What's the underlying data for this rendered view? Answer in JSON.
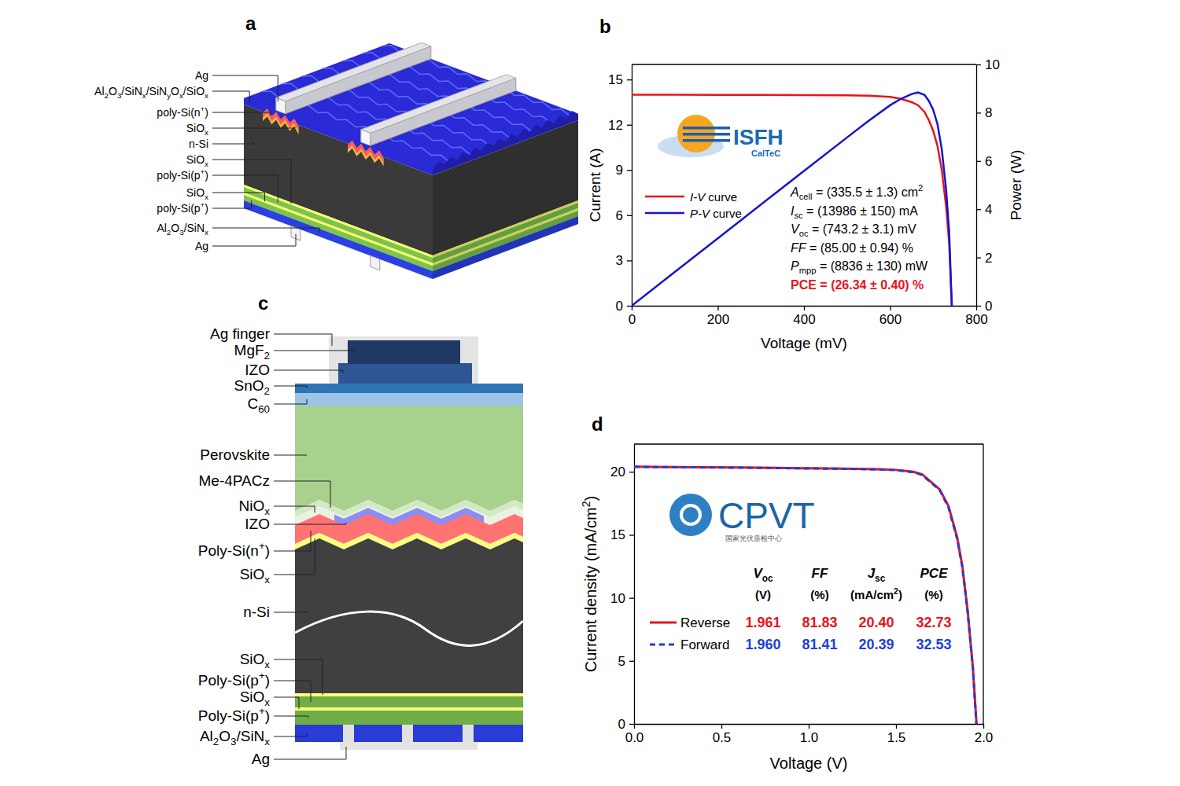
{
  "panel_labels": [
    "a",
    "b",
    "c",
    "d"
  ],
  "diagrams": [
    {
      "labels": [
        [
          "Ag"
        ],
        [
          "Al",
          {
            "sub": "2"
          },
          "O",
          {
            "sub": "3"
          },
          "/SiN",
          {
            "sub": "x"
          },
          "/SiN",
          {
            "sub": "y"
          },
          "O",
          {
            "sub": "x"
          },
          "/SiO",
          {
            "sub": "x"
          }
        ],
        [
          "poly-Si(n",
          {
            "sup": "+"
          },
          ")"
        ],
        [
          "SiO",
          {
            "sub": "x"
          }
        ],
        [
          "n-Si"
        ],
        [
          "SiO",
          {
            "sub": "x"
          }
        ],
        [
          "poly-Si(p",
          {
            "sup": "+"
          },
          ")"
        ],
        [
          "SiO",
          {
            "sub": "x"
          }
        ],
        [
          "poly-Si(p",
          {
            "sup": "+"
          },
          ")"
        ],
        [
          "Al",
          {
            "sub": "2"
          },
          "O",
          {
            "sub": "3"
          },
          "/SiN",
          {
            "sub": "x"
          }
        ],
        [
          "Ag"
        ]
      ]
    },
    {
      "labels": [
        [
          "Ag finger"
        ],
        [
          "MgF",
          {
            "sub": "2"
          }
        ],
        [
          "IZO"
        ],
        [
          "SnO",
          {
            "sub": "2"
          }
        ],
        [
          "C",
          {
            "sub": "60"
          }
        ],
        [
          "Perovskite"
        ],
        [
          "Me-4PACz"
        ],
        [
          "NiO",
          {
            "sub": "x"
          }
        ],
        [
          "IZO"
        ],
        [
          "Poly-Si(n",
          {
            "sup": "+"
          },
          ")"
        ],
        [
          "SiO",
          {
            "sub": "x"
          }
        ],
        [
          "n-Si"
        ],
        [
          "SiO",
          {
            "sub": "x"
          }
        ],
        [
          "Poly-Si(p",
          {
            "sup": "+"
          },
          ")"
        ],
        [
          "SiO",
          {
            "sub": "x"
          }
        ],
        [
          "Poly-Si(p",
          {
            "sup": "+"
          },
          ")"
        ],
        [
          "Al",
          {
            "sub": "2"
          },
          "O",
          {
            "sub": "3"
          },
          "/SiN",
          {
            "sub": "x"
          }
        ],
        [
          "Ag"
        ]
      ]
    }
  ],
  "chart_data": [
    {
      "type": "line",
      "x_label": "Voltage (mV)",
      "y_label": "Current (A)",
      "y2_label": "Power (W)",
      "x": [
        0,
        100,
        200,
        300,
        400,
        500,
        550,
        600,
        625,
        650,
        665,
        680,
        690,
        700,
        710,
        720,
        730,
        737,
        743.2
      ],
      "xlim": [
        0,
        800
      ],
      "xticks": [
        0,
        200,
        400,
        600,
        800
      ],
      "ylim": [
        0,
        16
      ],
      "yticks": [
        0,
        3,
        6,
        9,
        12,
        15
      ],
      "y2lim": [
        0,
        10
      ],
      "y2ticks": [
        0,
        2,
        4,
        6,
        8,
        10
      ],
      "series": [
        {
          "name": [
            {
              "i": "I-V"
            },
            " curve"
          ],
          "color": "#e8141b",
          "values": [
            13.99,
            13.99,
            13.98,
            13.98,
            13.97,
            13.95,
            13.93,
            13.85,
            13.72,
            13.5,
            13.29,
            12.85,
            12.3,
            11.6,
            10.6,
            9.0,
            6.6,
            4.2,
            0
          ]
        },
        {
          "name": [
            {
              "i": "P-V"
            },
            " curve"
          ],
          "color": "#1414d2",
          "axis": "y2",
          "values": [
            0,
            1.399,
            2.796,
            4.194,
            5.588,
            6.975,
            7.662,
            8.31,
            8.575,
            8.775,
            8.838,
            8.738,
            8.487,
            8.12,
            7.526,
            6.48,
            4.818,
            3.095,
            0
          ]
        }
      ],
      "legend": "left",
      "annotations": [
        {
          "text": [
            {
              "i": "A"
            },
            {
              "sub": "cell"
            },
            " = (335.5 ± 1.3) cm",
            {
              "sup": "2"
            }
          ]
        },
        {
          "text": [
            {
              "i": "I"
            },
            {
              "sub": "sc"
            },
            " = (13986 ± 150) mA"
          ]
        },
        {
          "text": [
            {
              "i": "V"
            },
            {
              "sub": "oc"
            },
            " = (743.2 ± 3.1) mV"
          ]
        },
        {
          "text": [
            {
              "i": "FF"
            },
            " = (85.00 ± 0.94) %"
          ]
        },
        {
          "text": [
            {
              "i": "P"
            },
            {
              "sub": "mpp"
            },
            " = (8836 ± 130) mW"
          ]
        },
        {
          "text": [
            "PCE = (26.34 ± 0.40) %"
          ],
          "color": "#e8141b"
        }
      ],
      "logo": {
        "text": "ISFH",
        "subtext": "CalTeC"
      }
    },
    {
      "type": "line",
      "x_label": "Voltage (V)",
      "y_label": [
        "Current density (mA/cm",
        {
          "sup": "2"
        },
        ")"
      ],
      "xlim": [
        0,
        2
      ],
      "xticks": [
        {
          "value": 0,
          "label": "0.0"
        },
        0.5,
        {
          "value": 1,
          "label": "1.0"
        },
        1.5,
        {
          "value": 2,
          "label": "2.0"
        }
      ],
      "ylim": [
        0,
        22.2
      ],
      "yticks": [
        0,
        5,
        10,
        15,
        20
      ],
      "series": [
        {
          "name": "Reverse",
          "color": "#e8141b",
          "line_style": "solid",
          "x": [
            0,
            0.2,
            0.4,
            0.6,
            0.8,
            1.0,
            1.2,
            1.4,
            1.5,
            1.6,
            1.65,
            1.7,
            1.75,
            1.8,
            1.85,
            1.88,
            1.91,
            1.94,
            1.961
          ],
          "values": [
            20.4,
            20.38,
            20.36,
            20.34,
            20.31,
            20.28,
            20.25,
            20.2,
            20.15,
            20.0,
            19.8,
            19.2,
            18.6,
            17.3,
            14.8,
            12.5,
            9.0,
            4.5,
            0
          ]
        },
        {
          "name": "Forward",
          "color": "#1f3fd8",
          "line_style": "dashed",
          "x": [
            0,
            0.2,
            0.4,
            0.6,
            0.8,
            1.0,
            1.2,
            1.4,
            1.5,
            1.6,
            1.65,
            1.7,
            1.75,
            1.8,
            1.85,
            1.88,
            1.91,
            1.94,
            1.96
          ],
          "values": [
            20.39,
            20.37,
            20.35,
            20.33,
            20.3,
            20.27,
            20.24,
            20.19,
            20.13,
            19.97,
            19.75,
            19.15,
            18.55,
            17.2,
            14.7,
            12.4,
            8.9,
            4.45,
            0
          ]
        }
      ],
      "legend": "left",
      "table": {
        "columns": [
          {
            "head": [
              {
                "i": "V"
              },
              {
                "sub": "oc"
              }
            ],
            "unit": [
              "(V)"
            ]
          },
          {
            "head": [
              {
                "i": "FF"
              }
            ],
            "unit": [
              "(%)"
            ]
          },
          {
            "head": [
              {
                "i": "J"
              },
              {
                "sub": "sc"
              }
            ],
            "unit": [
              "(mA/cm",
              {
                "sup": "2"
              },
              ")"
            ]
          },
          {
            "head": [
              {
                "i": "PCE"
              }
            ],
            "unit": [
              "(%)"
            ]
          }
        ],
        "rows": [
          [
            "1.961",
            "81.83",
            "20.40",
            "32.73"
          ],
          [
            "1.960",
            "81.41",
            "20.39",
            "32.53"
          ]
        ]
      },
      "logo": {
        "text": "CPVT",
        "subtext": "国家光伏质检中心"
      }
    }
  ]
}
